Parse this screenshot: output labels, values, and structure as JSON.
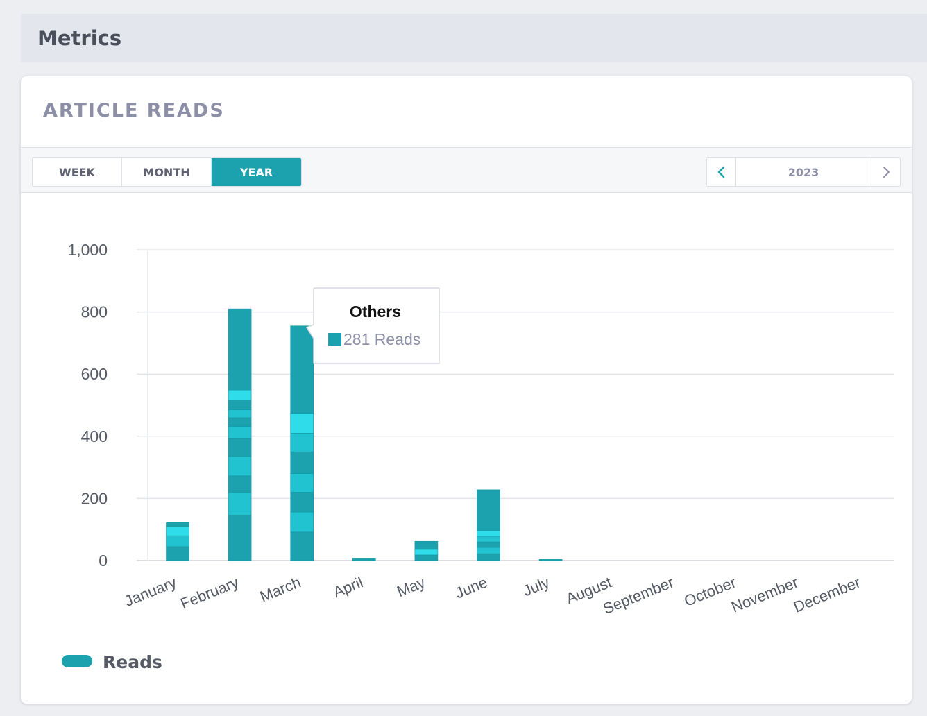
{
  "page": {
    "title": "Metrics"
  },
  "card": {
    "title": "ARTICLE READS"
  },
  "period_tabs": [
    {
      "label": "WEEK",
      "active": false
    },
    {
      "label": "MONTH",
      "active": false
    },
    {
      "label": "YEAR",
      "active": true
    }
  ],
  "year_nav": {
    "year": "2023",
    "prev_icon": "chevron-left-icon",
    "next_icon": "chevron-right-icon"
  },
  "colors": {
    "accent": "#1ba2ae",
    "segment_dark": "#1ba2ae",
    "segment_mid": "#21c3d1",
    "segment_light": "#2fdcea",
    "grid": "#e3e5ea",
    "axis": "#cfd2d8"
  },
  "chart_data": {
    "type": "bar",
    "title": "",
    "xlabel": "",
    "ylabel": "",
    "ylim": [
      0,
      1000
    ],
    "yticks": [
      0,
      200,
      400,
      600,
      800,
      1000
    ],
    "ytick_labels": [
      "0",
      "200",
      "400",
      "600",
      "800",
      "1,000"
    ],
    "categories": [
      "January",
      "February",
      "March",
      "April",
      "May",
      "June",
      "July",
      "August",
      "September",
      "October",
      "November",
      "December"
    ],
    "values": [
      122,
      810,
      755,
      8,
      62,
      228,
      5,
      0,
      0,
      0,
      0,
      0
    ],
    "stacks": [
      [
        45,
        35,
        30,
        12
      ],
      [
        146,
        73,
        54,
        62,
        57,
        40,
        28,
        25,
        32,
        32,
        261
      ],
      [
        92,
        64,
        64,
        60,
        70,
        60,
        64,
        281
      ],
      [
        8
      ],
      [
        18,
        18,
        26
      ],
      [
        22,
        20,
        18,
        18,
        18,
        132
      ],
      [
        5
      ],
      [],
      [],
      [],
      [],
      []
    ],
    "legend": [
      {
        "label": "Reads"
      }
    ],
    "legend_position": "bottom-left",
    "tooltip": {
      "title": "Others",
      "value": "281 Reads",
      "category": "March"
    }
  }
}
